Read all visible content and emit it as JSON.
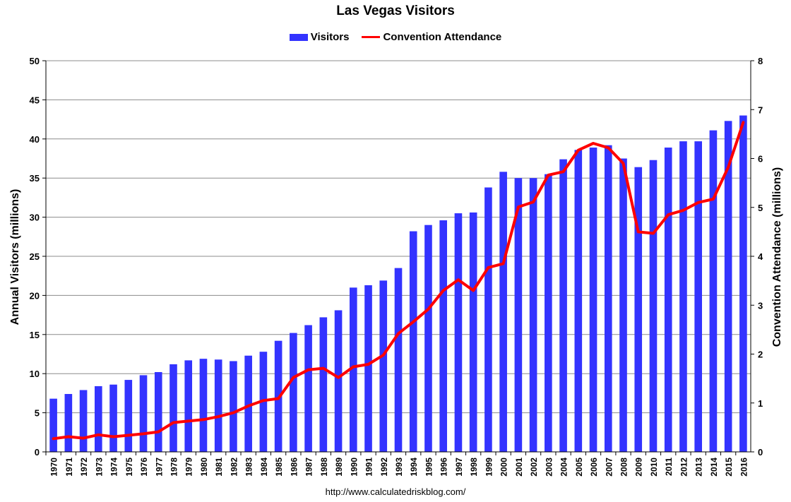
{
  "chart_data": {
    "type": "bar",
    "title": "Las Vegas Visitors",
    "categories": [
      "1970",
      "1971",
      "1972",
      "1973",
      "1974",
      "1975",
      "1976",
      "1977",
      "1978",
      "1979",
      "1980",
      "1981",
      "1982",
      "1983",
      "1984",
      "1985",
      "1986",
      "1987",
      "1988",
      "1989",
      "1990",
      "1991",
      "1992",
      "1993",
      "1994",
      "1995",
      "1996",
      "1997",
      "1998",
      "1999",
      "2000",
      "2001",
      "2002",
      "2003",
      "2004",
      "2005",
      "2006",
      "2007",
      "2008",
      "2009",
      "2010",
      "2011",
      "2012",
      "2013",
      "2014",
      "2015",
      "2016"
    ],
    "series": [
      {
        "name": "Visitors",
        "type": "bar",
        "axis": "left",
        "color": "#3333ff",
        "values": [
          6.8,
          7.4,
          7.9,
          8.4,
          8.6,
          9.2,
          9.8,
          10.2,
          11.2,
          11.7,
          11.9,
          11.8,
          11.6,
          12.3,
          12.8,
          14.2,
          15.2,
          16.2,
          17.2,
          18.1,
          21.0,
          21.3,
          21.9,
          23.5,
          28.2,
          29.0,
          29.6,
          30.5,
          30.6,
          33.8,
          35.8,
          35.0,
          35.0,
          35.5,
          37.4,
          38.6,
          38.9,
          39.2,
          37.5,
          36.4,
          37.3,
          38.9,
          39.7,
          39.7,
          41.1,
          42.3,
          43.0
        ]
      },
      {
        "name": "Convention Attendance",
        "type": "line",
        "axis": "right",
        "color": "#ff0000",
        "values": [
          0.27,
          0.31,
          0.28,
          0.35,
          0.31,
          0.34,
          0.37,
          0.41,
          0.6,
          0.63,
          0.66,
          0.72,
          0.8,
          0.94,
          1.05,
          1.09,
          1.52,
          1.68,
          1.71,
          1.52,
          1.74,
          1.79,
          1.98,
          2.42,
          2.66,
          2.92,
          3.3,
          3.52,
          3.3,
          3.77,
          3.85,
          5.01,
          5.11,
          5.66,
          5.73,
          6.17,
          6.31,
          6.22,
          5.9,
          4.5,
          4.47,
          4.85,
          4.94,
          5.1,
          5.17,
          5.82,
          6.74
        ]
      }
    ],
    "ylabel": "Annual Visitors (millions)",
    "ylim": [
      0,
      50
    ],
    "yticks": [
      "0",
      "5",
      "10",
      "15",
      "20",
      "25",
      "30",
      "35",
      "40",
      "45",
      "50"
    ],
    "y2label": "Convention Attendance (millions)",
    "y2lim": [
      0,
      8
    ],
    "y2ticks": [
      "0",
      "1",
      "2",
      "3",
      "4",
      "5",
      "6",
      "7",
      "8"
    ],
    "grid": true,
    "legend_position": "top-center",
    "source": "http://www.calculatedriskblog.com/"
  }
}
